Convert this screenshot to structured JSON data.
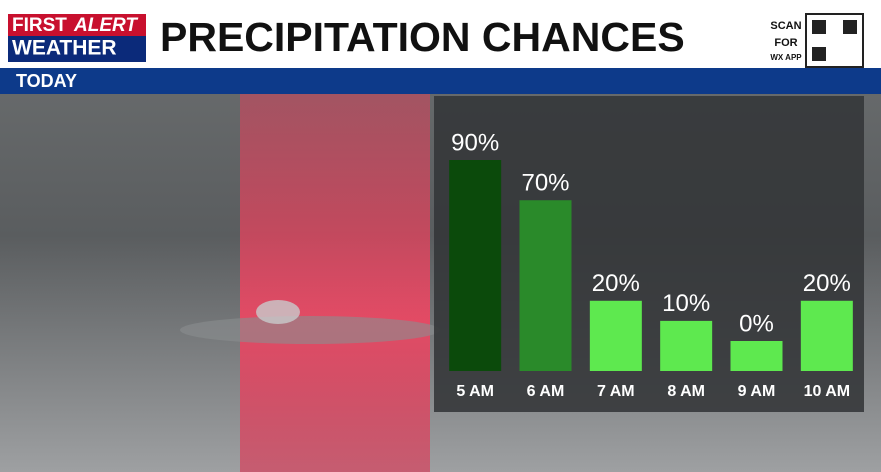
{
  "header": {
    "brand_top_left": "FIRST",
    "brand_top_right": "ALERT",
    "brand_bottom": "WEATHER",
    "title": "PRECIPITATION CHANCES",
    "qr_text": [
      "SCAN",
      "FOR",
      "WX APP"
    ],
    "subtitle": "TODAY"
  },
  "chart_data": {
    "type": "bar",
    "categories": [
      "5 AM",
      "6 AM",
      "7 AM",
      "8 AM",
      "9 AM",
      "10 AM"
    ],
    "values": [
      90,
      70,
      20,
      10,
      0,
      20
    ],
    "value_labels": [
      "90%",
      "70%",
      "20%",
      "10%",
      "0%",
      "20%"
    ],
    "colors": [
      "#0b4a0b",
      "#2a8a2a",
      "#5ee94f",
      "#5ee94f",
      "#5ee94f",
      "#5ee94f"
    ],
    "ylim": [
      0,
      90
    ]
  }
}
